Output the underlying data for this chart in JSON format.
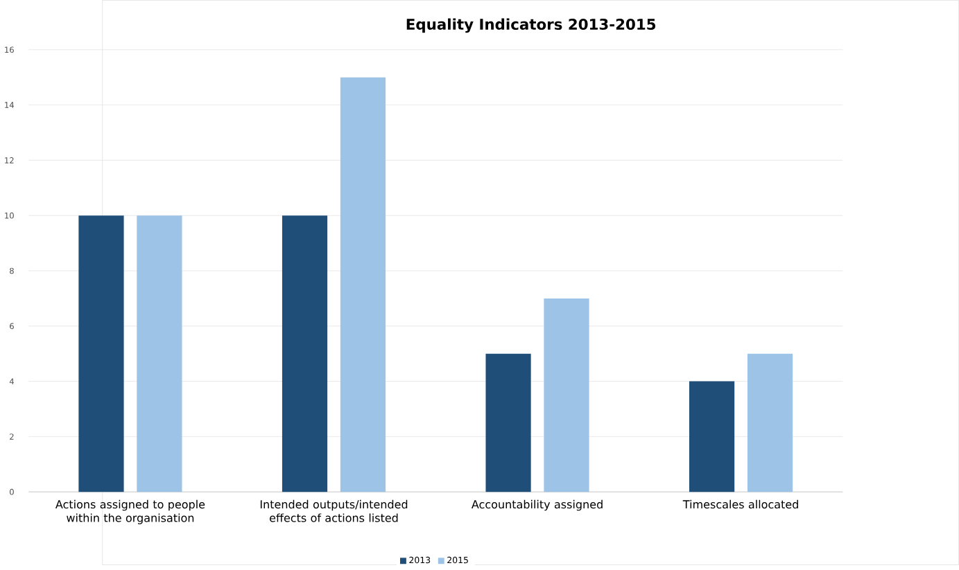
{
  "chart_data": {
    "type": "bar",
    "title": "Equality Indicators 2013-2015",
    "categories": [
      "Actions assigned to people within the organisation",
      "Intended outputs/intended effects of actions listed",
      "Accountability assigned",
      "Timescales allocated"
    ],
    "series": [
      {
        "name": "2013",
        "color": "#1f4e79",
        "values": [
          10,
          10,
          5,
          4
        ]
      },
      {
        "name": "2015",
        "color": "#9dc3e6",
        "values": [
          10,
          15,
          7,
          5
        ]
      }
    ],
    "ylim": [
      0,
      16
    ],
    "yticks": [
      0,
      2,
      4,
      6,
      8,
      10,
      12,
      14,
      16
    ],
    "grid": "y",
    "legend": "bottom"
  }
}
